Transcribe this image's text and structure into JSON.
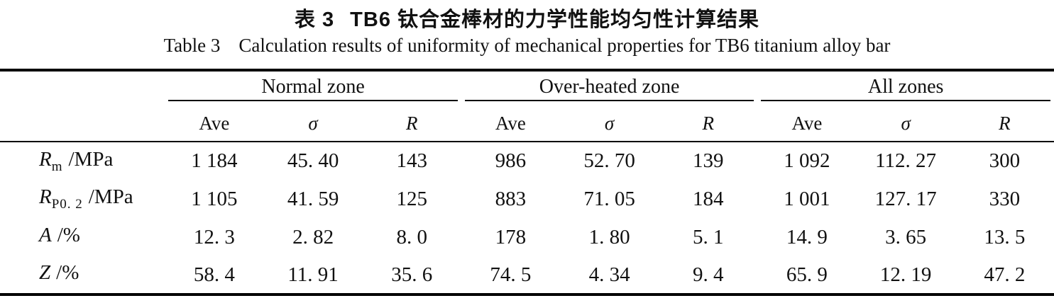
{
  "caption": {
    "zh_label": "表 3",
    "zh_text": "TB6 钛合金棒材的力学性能均匀性计算结果",
    "en_label": "Table 3",
    "en_text": "Calculation results of uniformity of mechanical properties for TB6 titanium alloy bar"
  },
  "table": {
    "groups": [
      {
        "label": "Normal zone"
      },
      {
        "label": "Over-heated zone"
      },
      {
        "label": "All zones"
      }
    ],
    "subheaders": [
      "Ave",
      "σ",
      "R"
    ],
    "rows": [
      {
        "label": {
          "base": "R",
          "sub": "m",
          "unit": "/MPa"
        },
        "normal": {
          "ave": "1 184",
          "sigma": "45. 40",
          "range": "143"
        },
        "overheated": {
          "ave": "986",
          "sigma": "52. 70",
          "range": "139"
        },
        "all": {
          "ave": "1 092",
          "sigma": "112. 27",
          "range": "300"
        }
      },
      {
        "label": {
          "base": "R",
          "sub": "P0. 2",
          "unit": "/MPa"
        },
        "normal": {
          "ave": "1 105",
          "sigma": "41. 59",
          "range": "125"
        },
        "overheated": {
          "ave": "883",
          "sigma": "71. 05",
          "range": "184"
        },
        "all": {
          "ave": "1 001",
          "sigma": "127. 17",
          "range": "330"
        }
      },
      {
        "label": {
          "base": "A",
          "sub": "",
          "unit": "/%"
        },
        "normal": {
          "ave": "12. 3",
          "sigma": "2. 82",
          "range": "8. 0"
        },
        "overheated": {
          "ave": "178",
          "sigma": "1. 80",
          "range": "5. 1"
        },
        "all": {
          "ave": "14. 9",
          "sigma": "3. 65",
          "range": "13. 5"
        }
      },
      {
        "label": {
          "base": "Z",
          "sub": "",
          "unit": "/%"
        },
        "normal": {
          "ave": "58. 4",
          "sigma": "11. 91",
          "range": "35. 6"
        },
        "overheated": {
          "ave": "74. 5",
          "sigma": "4. 34",
          "range": "9. 4"
        },
        "all": {
          "ave": "65. 9",
          "sigma": "12. 19",
          "range": "47. 2"
        }
      }
    ]
  },
  "colors": {
    "text": "#111111",
    "background": "#ffffff",
    "rule": "#000000"
  }
}
